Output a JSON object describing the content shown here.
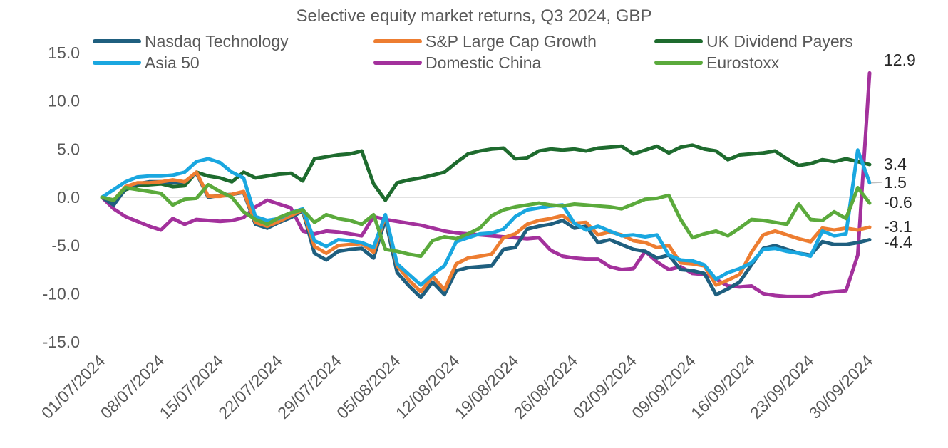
{
  "chart_data": {
    "type": "line",
    "title": "Selective equity market returns, Q3 2024, GBP",
    "xlabel": "",
    "ylabel": "",
    "ylim": [
      -15,
      15
    ],
    "yticks": [
      "15.0",
      "10.0",
      "5.0",
      "0.0",
      "-5.0",
      "-10.0",
      "-15.0"
    ],
    "ytick_values": [
      15,
      10,
      5,
      0,
      -5,
      -10,
      -15
    ],
    "xticks": [
      "01/07/2024",
      "08/07/2024",
      "15/07/2024",
      "22/07/2024",
      "29/07/2024",
      "05/08/2024",
      "12/08/2024",
      "19/08/2024",
      "26/08/2024",
      "02/09/2024",
      "09/09/2024",
      "16/09/2024",
      "23/09/2024",
      "30/09/2024"
    ],
    "legend_position": "top",
    "x_points": 66,
    "series": [
      {
        "name": "Nasdaq Technology",
        "color": "#1F5F7F",
        "end_label": "-4.4",
        "values": [
          0,
          -0.8,
          0.9,
          1.4,
          1.6,
          1.6,
          1.5,
          1.6,
          2.5,
          0,
          0.2,
          0.3,
          0.5,
          -2.8,
          -3.2,
          -2.6,
          -2.1,
          -1.4,
          -5.8,
          -6.5,
          -5.6,
          -5.4,
          -5.3,
          -6.3,
          -2.3,
          -7.8,
          -9.2,
          -10.4,
          -8.8,
          -10.1,
          -7.6,
          -7.3,
          -7.2,
          -7.1,
          -5.4,
          -5.2,
          -3.3,
          -3.0,
          -2.8,
          -2.4,
          -3.2,
          -3.0,
          -4.7,
          -4.4,
          -4.9,
          -5.4,
          -5.6,
          -6.3,
          -6.0,
          -7.5,
          -7.6,
          -7.9,
          -10.1,
          -9.5,
          -8.8,
          -7.0,
          -5.3,
          -5.0,
          -5.4,
          -5.8,
          -6.0,
          -4.6,
          -4.9,
          -4.9,
          -4.7,
          -4.4
        ]
      },
      {
        "name": "S&P Large Cap Growth",
        "color": "#ED7D31",
        "end_label": "-3.1",
        "values": [
          0,
          -0.3,
          1.1,
          1.5,
          1.5,
          1.6,
          1.8,
          1.6,
          2.6,
          0.1,
          0.1,
          0.3,
          0.6,
          -2.6,
          -3.0,
          -2.5,
          -1.9,
          -1.3,
          -5.1,
          -5.8,
          -5.0,
          -4.9,
          -4.8,
          -5.7,
          -1.9,
          -7.1,
          -8.6,
          -9.8,
          -8.2,
          -9.6,
          -6.9,
          -6.3,
          -6.1,
          -5.9,
          -4.2,
          -3.8,
          -2.8,
          -2.4,
          -2.2,
          -1.9,
          -2.7,
          -2.6,
          -3.9,
          -3.6,
          -3.9,
          -4.5,
          -4.7,
          -5.2,
          -5.0,
          -6.8,
          -6.9,
          -7.1,
          -9.1,
          -8.6,
          -8.0,
          -5.7,
          -3.9,
          -3.5,
          -3.9,
          -4.3,
          -4.6,
          -3.2,
          -3.4,
          -3.2,
          -3.4,
          -3.1
        ]
      },
      {
        "name": "UK Dividend Payers",
        "color": "#1E6B2E",
        "end_label": "3.4",
        "values": [
          0,
          -0.6,
          0.8,
          1.2,
          1.3,
          1.4,
          1.1,
          1.2,
          2.6,
          2.2,
          2.0,
          1.6,
          2.6,
          2.0,
          2.2,
          2.4,
          2.5,
          1.7,
          4.0,
          4.2,
          4.4,
          4.5,
          4.8,
          1.4,
          -0.3,
          1.5,
          1.8,
          2.0,
          2.3,
          2.6,
          3.6,
          4.5,
          4.8,
          5.0,
          5.1,
          4.0,
          4.1,
          4.8,
          5.0,
          4.9,
          5.0,
          4.8,
          5.1,
          5.2,
          5.3,
          4.5,
          4.9,
          5.3,
          4.6,
          5.2,
          5.4,
          5.0,
          4.8,
          3.9,
          4.4,
          4.5,
          4.6,
          4.8,
          4.0,
          3.3,
          3.5,
          3.9,
          3.7,
          4.0,
          3.7,
          3.4
        ]
      },
      {
        "name": "Asia 50",
        "color": "#1AA7E0",
        "end_label": "1.5",
        "values": [
          0,
          0.8,
          1.6,
          2.1,
          2.2,
          2.2,
          2.3,
          2.6,
          3.7,
          4.0,
          3.6,
          2.6,
          2.0,
          -2.0,
          -2.4,
          -2.2,
          -1.6,
          -1.2,
          -4.5,
          -5.1,
          -4.4,
          -4.5,
          -4.7,
          -5.2,
          -1.8,
          -6.9,
          -8.0,
          -9.1,
          -8.0,
          -7.1,
          -4.6,
          -4.2,
          -3.8,
          -3.7,
          -3.3,
          -2.0,
          -1.3,
          -1.1,
          -0.9,
          -0.8,
          -2.7,
          -3.4,
          -3.0,
          -3.5,
          -4.0,
          -3.9,
          -4.1,
          -3.9,
          -6.0,
          -6.5,
          -6.6,
          -7.0,
          -8.5,
          -7.8,
          -7.4,
          -6.8,
          -5.4,
          -5.3,
          -5.6,
          -5.8,
          -6.1,
          -3.5,
          -4.0,
          -3.8,
          4.9,
          1.5
        ]
      },
      {
        "name": "Domestic China",
        "color": "#A3319C",
        "end_label": "12.9",
        "values": [
          0,
          -1.2,
          -2.0,
          -2.5,
          -3.0,
          -3.4,
          -2.2,
          -2.8,
          -2.3,
          -2.4,
          -2.5,
          -2.4,
          -2.1,
          -1.0,
          -0.3,
          -0.7,
          -1.1,
          -3.5,
          -3.8,
          -3.5,
          -3.6,
          -3.8,
          -4.0,
          -2.0,
          -2.3,
          -2.5,
          -2.7,
          -2.9,
          -3.2,
          -3.5,
          -3.7,
          -3.8,
          -3.9,
          -4.0,
          -4.1,
          -4.2,
          -4.3,
          -4.2,
          -5.5,
          -6.1,
          -6.3,
          -6.4,
          -6.4,
          -7.2,
          -7.5,
          -7.4,
          -5.6,
          -6.7,
          -7.5,
          -7.2,
          -7.9,
          -8.0,
          -8.5,
          -9.2,
          -9.3,
          -9.2,
          -10.0,
          -10.2,
          -10.3,
          -10.3,
          -10.3,
          -9.9,
          -9.8,
          -9.7,
          -6.0,
          12.9
        ]
      },
      {
        "name": "Eurostoxx",
        "color": "#5BAA3C",
        "end_label": "-0.6",
        "values": [
          0,
          -0.3,
          1.0,
          0.8,
          0.6,
          0.4,
          -0.8,
          -0.2,
          -0.1,
          1.3,
          0.6,
          0.0,
          -1.5,
          -2.3,
          -2.8,
          -2.1,
          -1.6,
          -1.3,
          -2.6,
          -1.8,
          -2.2,
          -2.4,
          -2.8,
          -1.8,
          -5.4,
          -5.6,
          -5.9,
          -6.1,
          -4.5,
          -4.1,
          -4.3,
          -3.8,
          -3.2,
          -1.9,
          -1.3,
          -1.0,
          -0.8,
          -0.6,
          -0.8,
          -0.9,
          -0.7,
          -0.8,
          -0.9,
          -1.0,
          -1.2,
          -0.7,
          -0.2,
          -0.1,
          0.2,
          -2.3,
          -4.2,
          -3.8,
          -3.5,
          -4.0,
          -3.2,
          -2.3,
          -2.4,
          -2.6,
          -2.8,
          -0.7,
          -2.3,
          -2.4,
          -1.5,
          -2.2,
          1.0,
          -0.6
        ]
      }
    ]
  }
}
